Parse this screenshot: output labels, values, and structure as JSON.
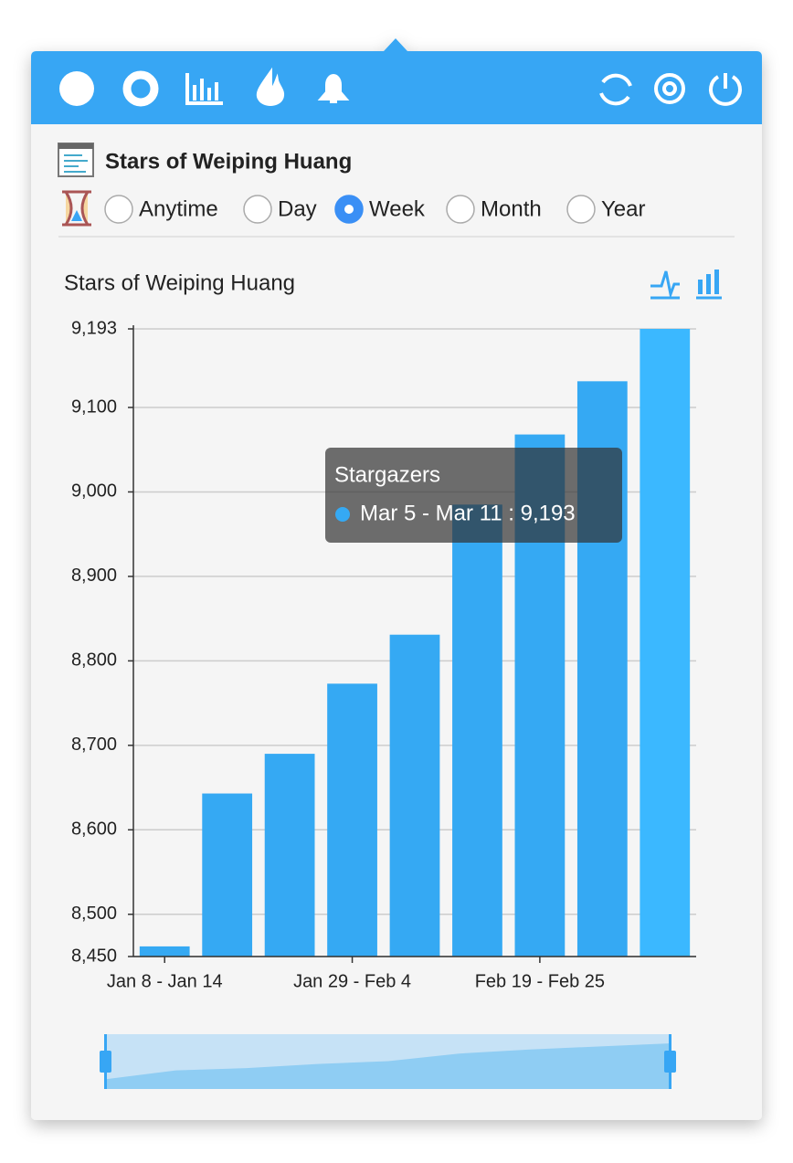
{
  "header": {
    "title": "Stars of Weiping Huang"
  },
  "periods": {
    "options": [
      "Anytime",
      "Day",
      "Week",
      "Month",
      "Year"
    ],
    "selected": 2
  },
  "chart_data": {
    "type": "bar",
    "title": "Stars of Weiping Huang",
    "categories": [
      "Jan 8 - Jan 14",
      null,
      null,
      "Jan 29 - Feb 4",
      null,
      null,
      "Feb 19 - Feb 25",
      null,
      null
    ],
    "series": [
      {
        "name": "Stargazers",
        "color": "#35a9f3",
        "values": [
          8462,
          8643,
          8690,
          8773,
          8831,
          8985,
          9068,
          9131,
          9193
        ]
      }
    ],
    "ylim": [
      8450,
      9193
    ],
    "yticks": [
      {
        "value": 8450,
        "label": "8,450"
      },
      {
        "value": 8500,
        "label": "8,500"
      },
      {
        "value": 8600,
        "label": "8,600"
      },
      {
        "value": 8700,
        "label": "8,700"
      },
      {
        "value": 8800,
        "label": "8,800"
      },
      {
        "value": 8900,
        "label": "8,900"
      },
      {
        "value": 9000,
        "label": "9,000"
      },
      {
        "value": 9100,
        "label": "9,100"
      },
      {
        "value": 9193,
        "label": "9,193"
      }
    ],
    "grid": true,
    "tooltip": {
      "text": "Mar 5 - Mar 11 : 9,193",
      "index": 8,
      "highlight_color": "#3bb8ff"
    }
  }
}
